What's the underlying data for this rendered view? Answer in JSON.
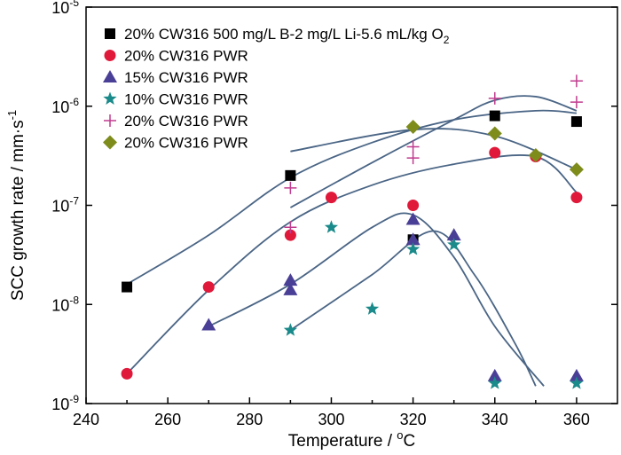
{
  "chart_data": {
    "type": "scatter",
    "xlabel": "Temperature / ",
    "xlabel_unit_base": "C",
    "xlabel_unit_sup": "o",
    "ylabel": "SCC growth rate / mm·s",
    "ylabel_sup": "-1",
    "y_scale": "log",
    "xlim": [
      240,
      370
    ],
    "ylim": [
      1e-09,
      1e-05
    ],
    "x_ticks": [
      "240",
      "260",
      "280",
      "300",
      "320",
      "340",
      "360"
    ],
    "y_tick_values": [
      1e-09,
      1e-08,
      1e-07,
      1e-06,
      1e-05
    ],
    "y_ticks": [
      {
        "base": "10",
        "exp": "-9"
      },
      {
        "base": "10",
        "exp": "-8"
      },
      {
        "base": "10",
        "exp": "-7"
      },
      {
        "base": "10",
        "exp": "-6"
      },
      {
        "base": "10",
        "exp": "-5"
      }
    ],
    "grid": false,
    "legend_position": "top-left",
    "series": [
      {
        "name": "20% CW316 500 mg/L B-2 mg/L Li-5.6  mL/kg O",
        "name_sub": "2",
        "marker": "square",
        "color": "#000000",
        "points": [
          [
            250,
            1.5e-08
          ],
          [
            290,
            2e-07
          ],
          [
            320,
            4.5e-08
          ],
          [
            340,
            8e-07
          ],
          [
            360,
            7e-07
          ]
        ]
      },
      {
        "name": "20% CW316 PWR",
        "marker": "circle",
        "color": "#e0193a",
        "points": [
          [
            250,
            2e-09
          ],
          [
            270,
            1.5e-08
          ],
          [
            290,
            5e-08
          ],
          [
            300,
            1.2e-07
          ],
          [
            320,
            1e-07
          ],
          [
            340,
            3.4e-07
          ],
          [
            350,
            3.1e-07
          ],
          [
            360,
            1.2e-07
          ]
        ]
      },
      {
        "name": "15% CW316 PWR",
        "marker": "triangle",
        "color": "#4a3f96",
        "points": [
          [
            270,
            6.2e-09
          ],
          [
            290,
            1.75e-08
          ],
          [
            290,
            1.4e-08
          ],
          [
            320,
            7.2e-08
          ],
          [
            320,
            4.5e-08
          ],
          [
            330,
            5e-08
          ],
          [
            340,
            1.9e-09
          ],
          [
            360,
            1.9e-09
          ]
        ]
      },
      {
        "name": "10% CW316 PWR",
        "marker": "star",
        "color": "#1a8a8a",
        "points": [
          [
            290,
            5.5e-09
          ],
          [
            300,
            6e-08
          ],
          [
            310,
            9e-09
          ],
          [
            320,
            3.6e-08
          ],
          [
            330,
            4e-08
          ],
          [
            340,
            1.6e-09
          ],
          [
            360,
            1.6e-09
          ]
        ]
      },
      {
        "name": "20% CW316 PWR",
        "marker": "plus",
        "color": "#c03c8f",
        "points": [
          [
            290,
            1.5e-07
          ],
          [
            290,
            6e-08
          ],
          [
            320,
            3.9e-07
          ],
          [
            320,
            3e-07
          ],
          [
            340,
            1.2e-06
          ],
          [
            360,
            1.8e-06
          ],
          [
            360,
            1.1e-06
          ]
        ]
      },
      {
        "name": "20% CW316 PWR",
        "marker": "diamond",
        "color": "#7e8c1c",
        "points": [
          [
            320,
            6.2e-07
          ],
          [
            340,
            5.3e-07
          ],
          [
            350,
            3.2e-07
          ],
          [
            360,
            2.3e-07
          ]
        ]
      }
    ],
    "trend_curves": [
      {
        "color": "#4a6585",
        "points": [
          [
            250,
            1.6e-08
          ],
          [
            270,
            5e-08
          ],
          [
            290,
            1.9e-07
          ],
          [
            310,
            4.3e-07
          ],
          [
            330,
            7.3e-07
          ],
          [
            350,
            9e-07
          ],
          [
            360,
            8.5e-07
          ]
        ]
      },
      {
        "color": "#4a6585",
        "points": [
          [
            250,
            2e-09
          ],
          [
            270,
            1.4e-08
          ],
          [
            290,
            6.8e-08
          ],
          [
            310,
            1.6e-07
          ],
          [
            330,
            2.6e-07
          ],
          [
            350,
            3.1e-07
          ],
          [
            360,
            1.35e-07
          ]
        ]
      },
      {
        "color": "#4a6585",
        "points": [
          [
            290,
            9.5e-08
          ],
          [
            310,
            2.7e-07
          ],
          [
            330,
            7.3e-07
          ],
          [
            340,
            1.15e-06
          ],
          [
            350,
            1.25e-06
          ],
          [
            360,
            9e-07
          ]
        ]
      },
      {
        "color": "#4a6585",
        "points": [
          [
            290,
            3.5e-07
          ],
          [
            320,
            5.8e-07
          ],
          [
            340,
            5e-07
          ],
          [
            360,
            2.3e-07
          ]
        ]
      },
      {
        "color": "#4a6585",
        "points": [
          [
            270,
            6e-09
          ],
          [
            290,
            1.6e-08
          ],
          [
            310,
            6e-08
          ],
          [
            320,
            8e-08
          ],
          [
            330,
            3e-08
          ],
          [
            340,
            6e-09
          ],
          [
            352,
            1.5e-09
          ]
        ]
      },
      {
        "color": "#4a6585",
        "points": [
          [
            290,
            5.5e-09
          ],
          [
            310,
            2e-08
          ],
          [
            325,
            5.5e-08
          ],
          [
            335,
            2e-08
          ],
          [
            345,
            4e-09
          ],
          [
            350,
            1.5e-09
          ]
        ]
      }
    ]
  }
}
